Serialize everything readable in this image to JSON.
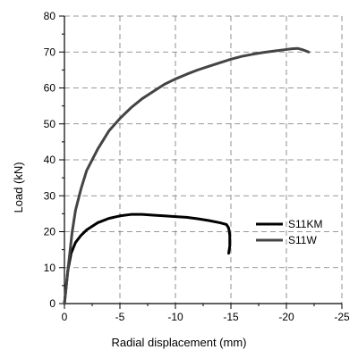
{
  "chart_data": {
    "type": "line",
    "xlabel": "Radial displacement (mm)",
    "ylabel": "Load (kN)",
    "xlim": [
      0,
      -25
    ],
    "ylim": [
      0,
      80
    ],
    "xticks": [
      0,
      -5,
      -10,
      -15,
      -20,
      -25
    ],
    "xtick_labels": [
      "0",
      "-5",
      "-10",
      "-15",
      "-20",
      "-25"
    ],
    "yticks": [
      0,
      10,
      20,
      30,
      40,
      50,
      60,
      70,
      80
    ],
    "ytick_labels": [
      "0",
      "10",
      "20",
      "30",
      "40",
      "50",
      "60",
      "70",
      "80"
    ],
    "grid": true,
    "legend_position": "right",
    "series": [
      {
        "name": "S11KM",
        "color": "#000000",
        "x": [
          0,
          -0.3,
          -0.6,
          -1.0,
          -1.5,
          -2.0,
          -3.0,
          -4.0,
          -5.0,
          -6.0,
          -7.0,
          -8.0,
          -9.0,
          -10.0,
          -11.0,
          -12.0,
          -13.0,
          -14.0,
          -14.6,
          -14.8,
          -14.9,
          -14.9,
          -14.8
        ],
        "y": [
          0,
          9,
          14,
          17,
          19,
          20.5,
          22.5,
          23.7,
          24.4,
          24.8,
          24.8,
          24.6,
          24.4,
          24.2,
          24.0,
          23.6,
          23.1,
          22.5,
          22.0,
          21.0,
          19.0,
          16.0,
          14.0
        ]
      },
      {
        "name": "S11W",
        "color": "#444444",
        "x": [
          0,
          -0.3,
          -0.7,
          -1.0,
          -1.5,
          -2.0,
          -3.0,
          -4.0,
          -5.0,
          -6.0,
          -7.0,
          -8.0,
          -9.0,
          -10.0,
          -11.0,
          -12.0,
          -13.0,
          -14.0,
          -15.0,
          -16.0,
          -17.0,
          -18.0,
          -19.0,
          -20.0,
          -20.5,
          -21.0,
          -21.5,
          -22.0
        ],
        "y": [
          0,
          9,
          20,
          26,
          32,
          37,
          43,
          48,
          51.5,
          54.5,
          57,
          59,
          61,
          62.5,
          63.8,
          65,
          66,
          67,
          68,
          68.8,
          69.4,
          69.9,
          70.3,
          70.7,
          70.9,
          71.0,
          70.6,
          70.0
        ]
      }
    ]
  }
}
